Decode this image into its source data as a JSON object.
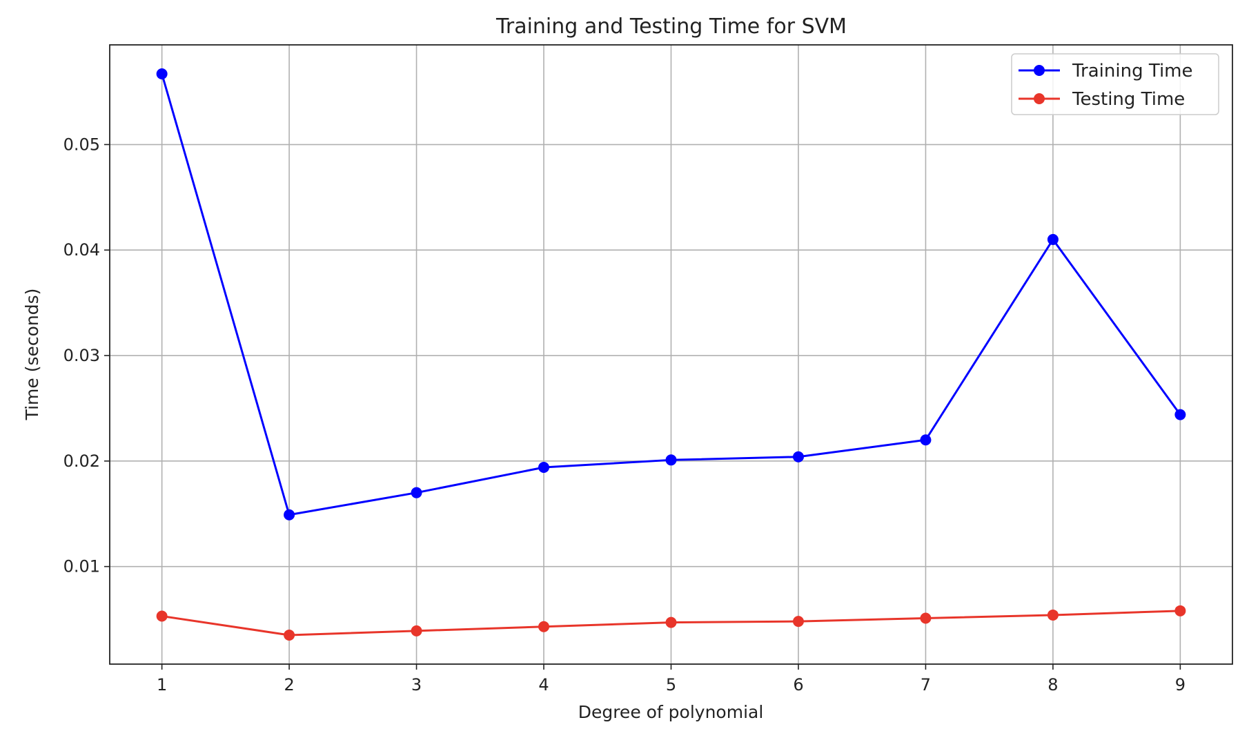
{
  "chart_data": {
    "type": "line",
    "title": "Training and Testing Time for SVM",
    "xlabel": "Degree of polynomial",
    "ylabel": "Time (seconds)",
    "x": [
      1,
      2,
      3,
      4,
      5,
      6,
      7,
      8,
      9
    ],
    "xticks": [
      "1",
      "2",
      "3",
      "4",
      "5",
      "6",
      "7",
      "8",
      "9"
    ],
    "yticks": [
      0.01,
      0.02,
      0.03,
      0.04,
      0.05
    ],
    "ytick_labels": [
      "0.01",
      "0.02",
      "0.03",
      "0.04",
      "0.05"
    ],
    "xlim": [
      0.59,
      9.41
    ],
    "ylim": [
      0.00075,
      0.05945
    ],
    "grid": true,
    "legend_position": "top-right",
    "series": [
      {
        "name": "Training Time",
        "color": "#0000ff",
        "marker": "circle",
        "values": [
          0.0567,
          0.0149,
          0.017,
          0.0194,
          0.0201,
          0.0204,
          0.022,
          0.041,
          0.0244
        ]
      },
      {
        "name": "Testing Time",
        "color": "#e8352a",
        "marker": "circle",
        "values": [
          0.0053,
          0.0035,
          0.0039,
          0.0043,
          0.0047,
          0.0048,
          0.0051,
          0.0054,
          0.0058
        ]
      }
    ]
  }
}
